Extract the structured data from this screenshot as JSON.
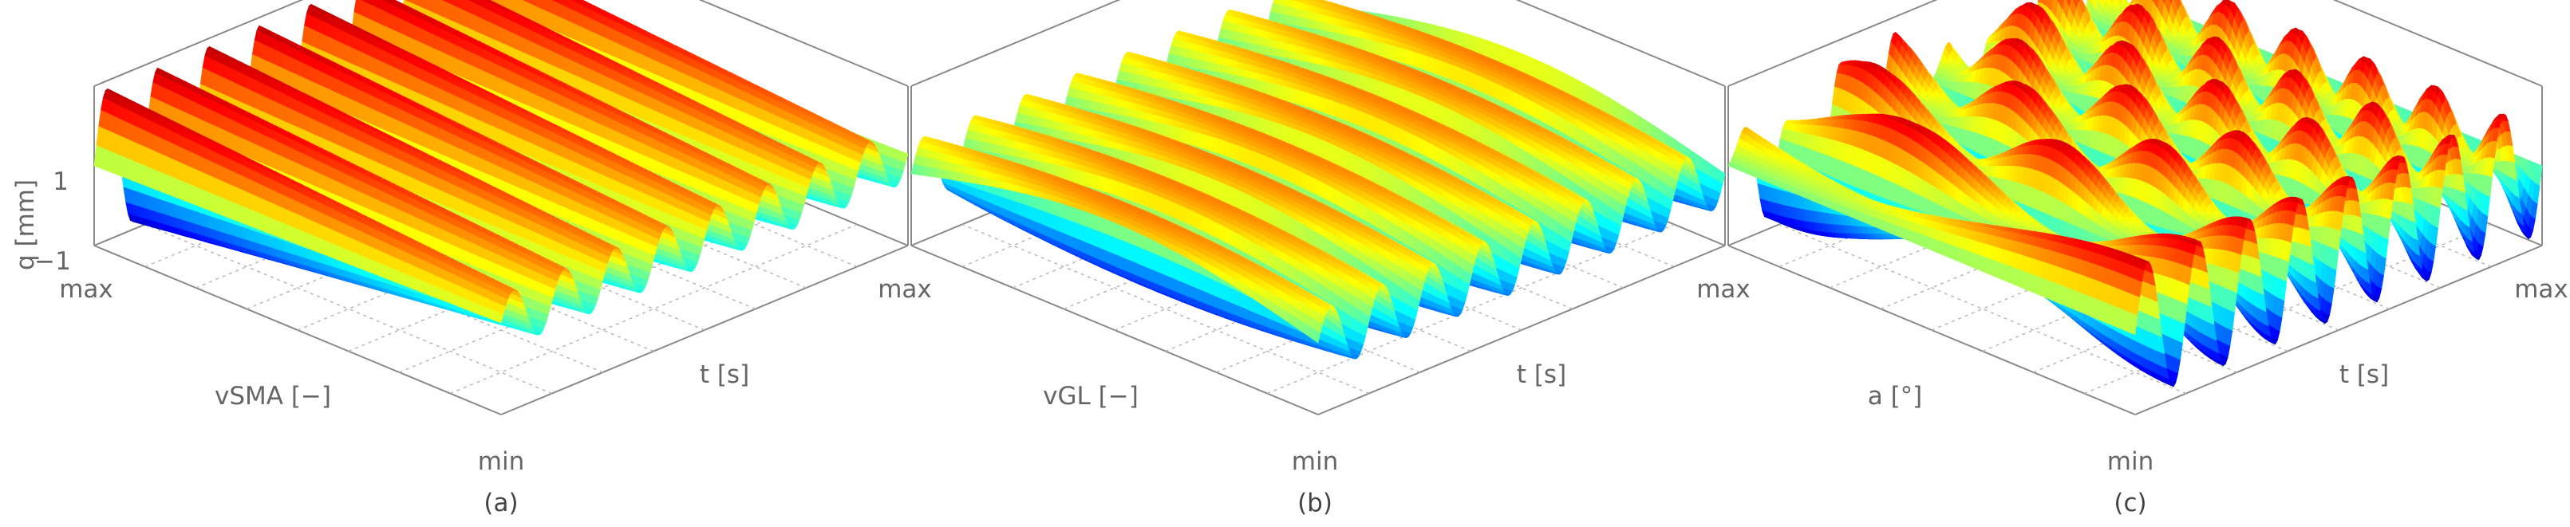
{
  "chart_data": [
    {
      "type": "surface",
      "caption": "(a)",
      "xlabel": "vSMA [−]",
      "ylabel": "t [s]",
      "zlabel": "q [mm]",
      "x_ticks": [
        "min",
        "max"
      ],
      "y_ticks": [
        "min",
        "max"
      ],
      "z_ticks": [
        "−1",
        "1"
      ],
      "zlim": [
        -1,
        1
      ],
      "colormap": "jet",
      "grid": true,
      "ridges": 8,
      "pattern": "sinusoidal ridges along the design-variable axis, amplitude growing toward max"
    },
    {
      "type": "surface",
      "caption": "(b)",
      "xlabel": "vGL [−]",
      "ylabel": "t [s]",
      "zlabel": "",
      "x_ticks": [
        "min",
        "max"
      ],
      "y_ticks": [
        "min",
        "max"
      ],
      "z_ticks": [],
      "zlim": [
        -1,
        1
      ],
      "colormap": "jet",
      "grid": true,
      "ridges": 8,
      "pattern": "sinusoidal ridges merging into a broad plateau toward max"
    },
    {
      "type": "surface",
      "caption": "(c)",
      "xlabel": "a [°]",
      "ylabel": "t [s]",
      "zlabel": "",
      "x_ticks": [
        "min",
        "max"
      ],
      "y_ticks": [
        "min",
        "max"
      ],
      "z_ticks": [],
      "zlim": [
        -1,
        1
      ],
      "colormap": "jet",
      "grid": true,
      "ridges": 8,
      "pattern": "sinusoidal ridges with growing beat modulation toward max"
    }
  ]
}
